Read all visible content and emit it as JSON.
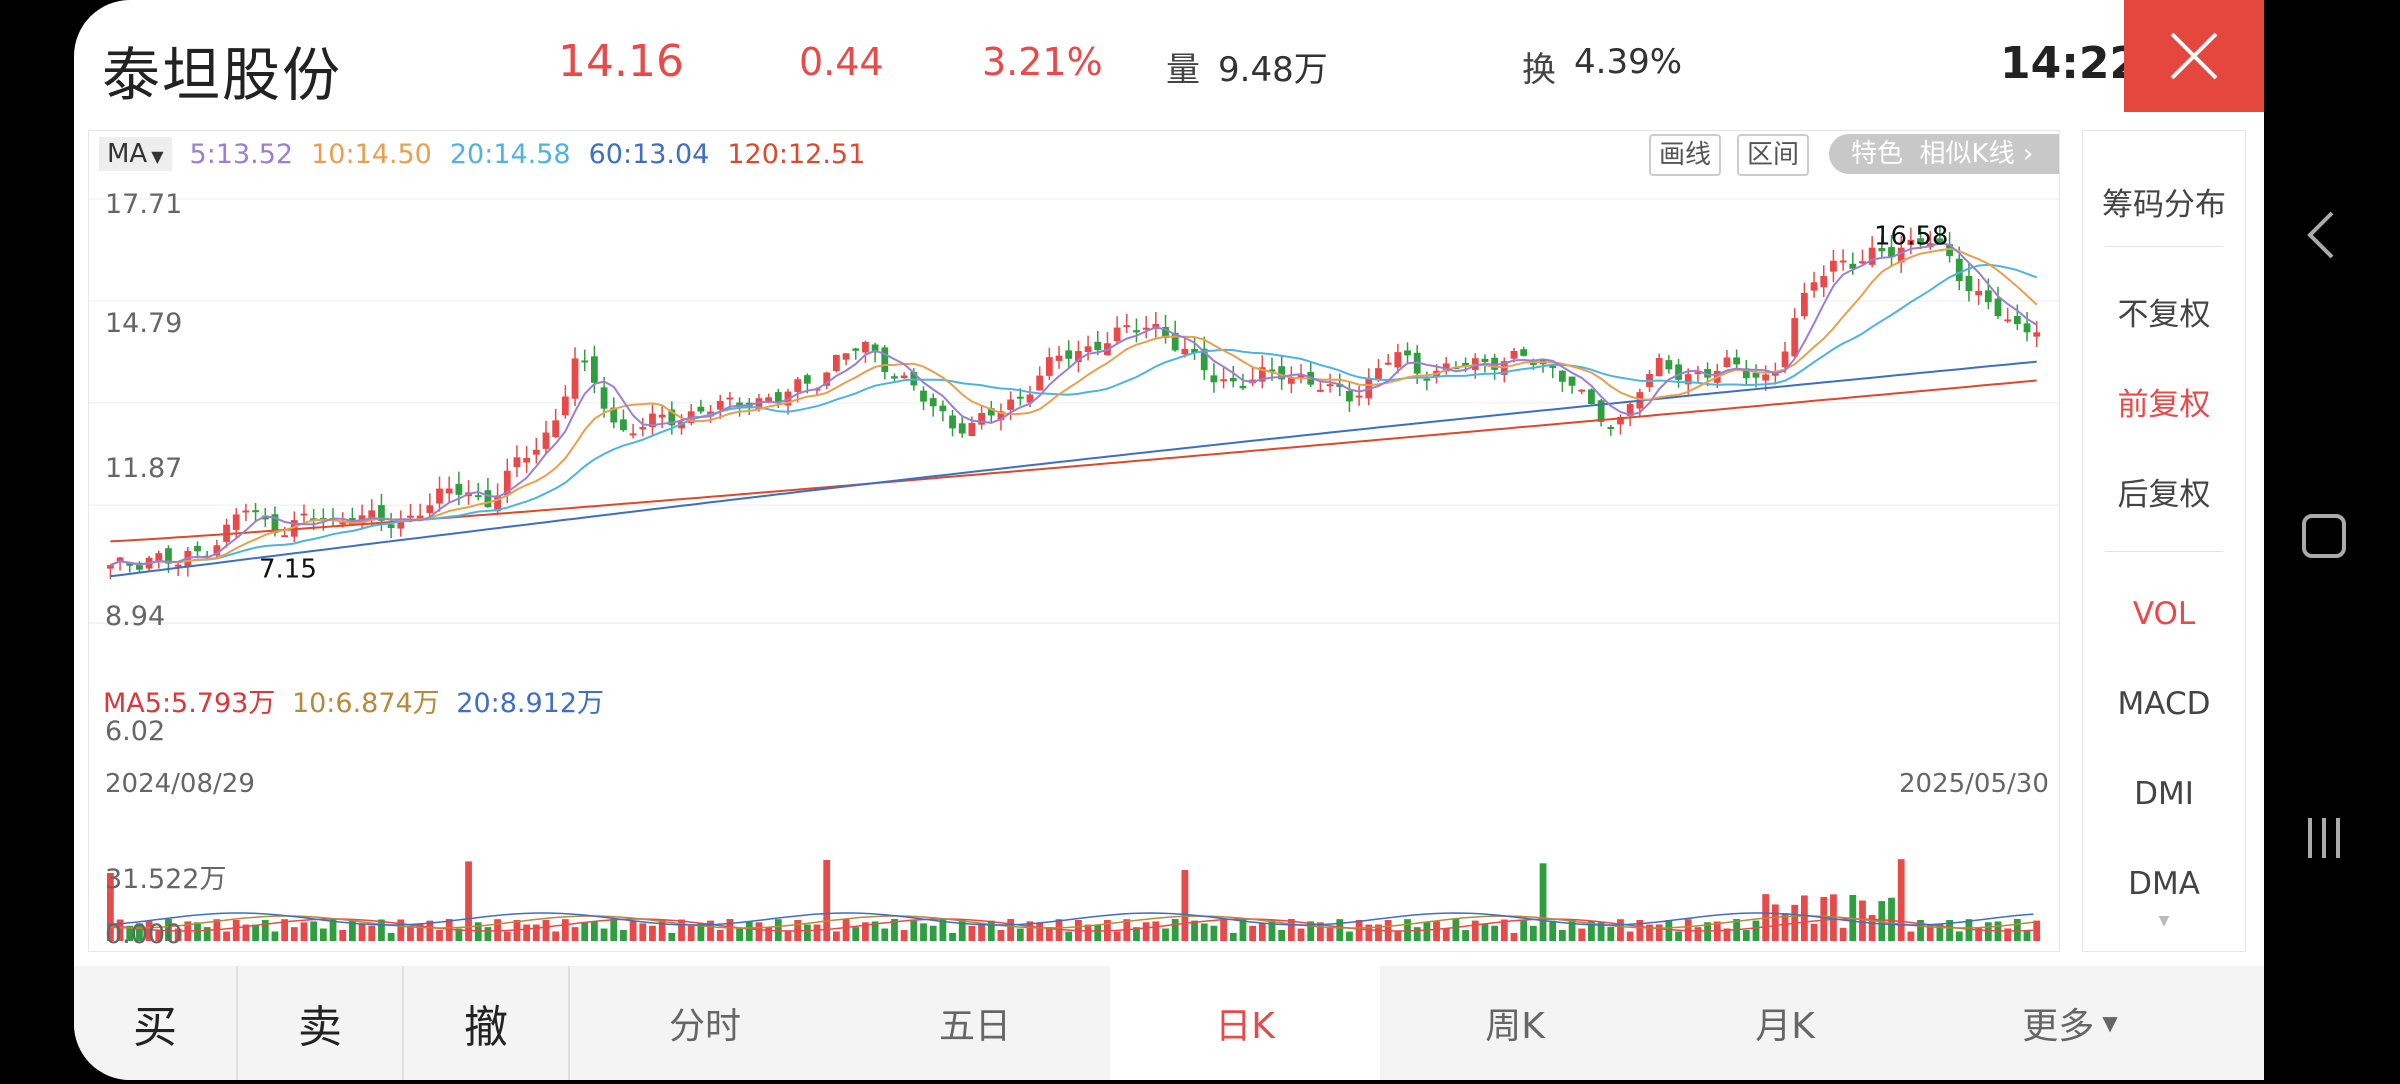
{
  "header": {
    "stock_name": "泰坦股份",
    "price": "14.16",
    "change": "0.44",
    "change_pct": "3.21%",
    "volume_label": "量",
    "volume": "9.48万",
    "turnover_label": "换",
    "turnover": "4.39%",
    "time": "14:22"
  },
  "toolbar": {
    "ma_selector": "MA",
    "ma5": "5:13.52",
    "ma10": "10:14.50",
    "ma20": "20:14.58",
    "ma60": "60:13.04",
    "ma120": "120:12.51",
    "draw_line": "画线",
    "range": "区间",
    "feature": "特色",
    "similar_kline": "相似K线 ›"
  },
  "price_axis": {
    "max": "17.71",
    "l2": "14.79",
    "l3": "11.87",
    "l4": "8.94",
    "min": "6.02",
    "high_label": "16.58",
    "low_label": "7.15"
  },
  "dates": {
    "start": "2024/08/29",
    "end": "2025/05/30"
  },
  "volume_panel": {
    "ma5": "MA5:5.793万",
    "ma10": "10:6.874万",
    "ma20": "20:8.912万",
    "max": "31.522万",
    "zero": "0.000"
  },
  "right_panel": {
    "chip": "筹码分布",
    "no_adjust": "不复权",
    "forward_adjust": "前复权",
    "backward_adjust": "后复权",
    "vol": "VOL",
    "macd": "MACD",
    "dmi": "DMI",
    "dma": "DMA"
  },
  "bottom_tabs": {
    "buy": "买",
    "sell": "卖",
    "cancel": "撤",
    "intraday": "分时",
    "five_day": "五日",
    "day_k": "日K",
    "week_k": "周K",
    "month_k": "月K",
    "more": "更多"
  },
  "colors": {
    "up": "#e84a4a",
    "down": "#2e9e3e",
    "ma5": "#9b7fd4",
    "ma10": "#e8a050",
    "ma20": "#4fb3e0",
    "ma60": "#3e6fc2",
    "ma120": "#d94a2e",
    "buy_marker": "#e8535a",
    "sell_marker": "#3b82d6",
    "t_marker": "#f0903a",
    "close_button": "#e5473e"
  },
  "chart_data": {
    "type": "candlestick",
    "x_range": [
      "2024/08/29",
      "2025/05/30"
    ],
    "ylim": [
      6.02,
      17.71
    ],
    "annotated_high": 16.58,
    "annotated_low": 7.15,
    "close_path": [
      7.1,
      7.3,
      7.5,
      7.2,
      7.6,
      8.0,
      8.9,
      8.4,
      8.3,
      8.6,
      8.4,
      8.7,
      8.5,
      8.3,
      8.9,
      9.2,
      9.4,
      9.0,
      9.8,
      10.5,
      11.2,
      13.1,
      12.3,
      11.0,
      11.2,
      11.4,
      11.5,
      11.7,
      11.8,
      12.0,
      11.9,
      12.3,
      12.6,
      13.2,
      13.5,
      13.0,
      12.4,
      11.8,
      11.3,
      11.2,
      11.6,
      12.0,
      12.7,
      13.2,
      13.4,
      13.7,
      13.9,
      14.2,
      13.6,
      13.0,
      12.6,
      12.4,
      12.6,
      12.8,
      12.5,
      12.2,
      12.1,
      12.6,
      13.3,
      12.8,
      12.8,
      12.9,
      13.0,
      13.2,
      13.1,
      12.8,
      12.6,
      11.5,
      11.1,
      12.4,
      12.9,
      12.6,
      12.8,
      12.9,
      12.7,
      12.6,
      14.0,
      15.5,
      16.0,
      15.8,
      16.2,
      16.4,
      16.58,
      16.0,
      15.2,
      14.6,
      13.9,
      14.16
    ],
    "ma5_last": 13.52,
    "ma10_last": 14.5,
    "ma20_last": 14.58,
    "ma60_last": 13.04,
    "ma120_last": 12.51,
    "volume_max": 31.522,
    "volume_ma5": 5.793,
    "volume_ma10": 6.874,
    "volume_ma20": 8.912
  }
}
